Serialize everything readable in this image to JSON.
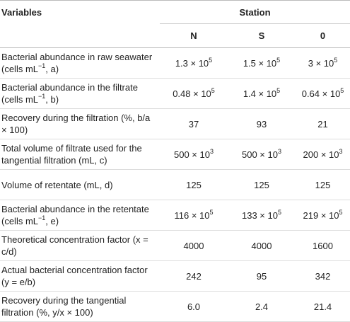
{
  "table": {
    "header": {
      "variables": "Variables",
      "station": "Station",
      "columns": [
        "N",
        "S",
        "0"
      ]
    },
    "rows": [
      {
        "label": [
          "Bacterial abundance in raw seawater (cells mL",
          {
            "sup": "−1"
          },
          ", a)"
        ],
        "cells": [
          [
            "1.3 × 10",
            {
              "sup": "5"
            }
          ],
          [
            "1.5 × 10",
            {
              "sup": "5"
            }
          ],
          [
            "3 × 10",
            {
              "sup": "5"
            }
          ]
        ]
      },
      {
        "label": [
          "Bacterial abundance in the filtrate (cells mL",
          {
            "sup": "−1"
          },
          ", b)"
        ],
        "cells": [
          [
            "0.48 × 10",
            {
              "sup": "5"
            }
          ],
          [
            "1.4 × 10",
            {
              "sup": "5"
            }
          ],
          [
            "0.64 × 10",
            {
              "sup": "5"
            }
          ]
        ]
      },
      {
        "label": [
          "Recovery during the filtration (%, b/a × 100)"
        ],
        "cells": [
          [
            "37"
          ],
          [
            "93"
          ],
          [
            "21"
          ]
        ]
      },
      {
        "label": [
          "Total volume of filtrate used for the tangential filtration (mL, c)"
        ],
        "cells": [
          [
            "500 × 10",
            {
              "sup": "3"
            }
          ],
          [
            "500 × 10",
            {
              "sup": "3"
            }
          ],
          [
            "200 × 10",
            {
              "sup": "3"
            }
          ]
        ]
      },
      {
        "label": [
          "Volume of retentate (mL, d)"
        ],
        "cells": [
          [
            "125"
          ],
          [
            "125"
          ],
          [
            "125"
          ]
        ]
      },
      {
        "label": [
          "Bacterial abundance in the retentate (cells mL",
          {
            "sup": "−1"
          },
          ", e)"
        ],
        "cells": [
          [
            "116 × 10",
            {
              "sup": "5"
            }
          ],
          [
            "133 × 10",
            {
              "sup": "5"
            }
          ],
          [
            "219 × 10",
            {
              "sup": "5"
            }
          ]
        ]
      },
      {
        "label": [
          "Theoretical concentration factor (x = c/d)"
        ],
        "cells": [
          [
            "4000"
          ],
          [
            "4000"
          ],
          [
            "1600"
          ]
        ]
      },
      {
        "label": [
          "Actual bacterial concentration factor (y = e/b)"
        ],
        "cells": [
          [
            "242"
          ],
          [
            "95"
          ],
          [
            "342"
          ]
        ]
      },
      {
        "label": [
          "Recovery during the tangential filtration (%, y/x × 100)"
        ],
        "cells": [
          [
            "6.0"
          ],
          [
            "2.4"
          ],
          [
            "21.4"
          ]
        ]
      }
    ]
  }
}
